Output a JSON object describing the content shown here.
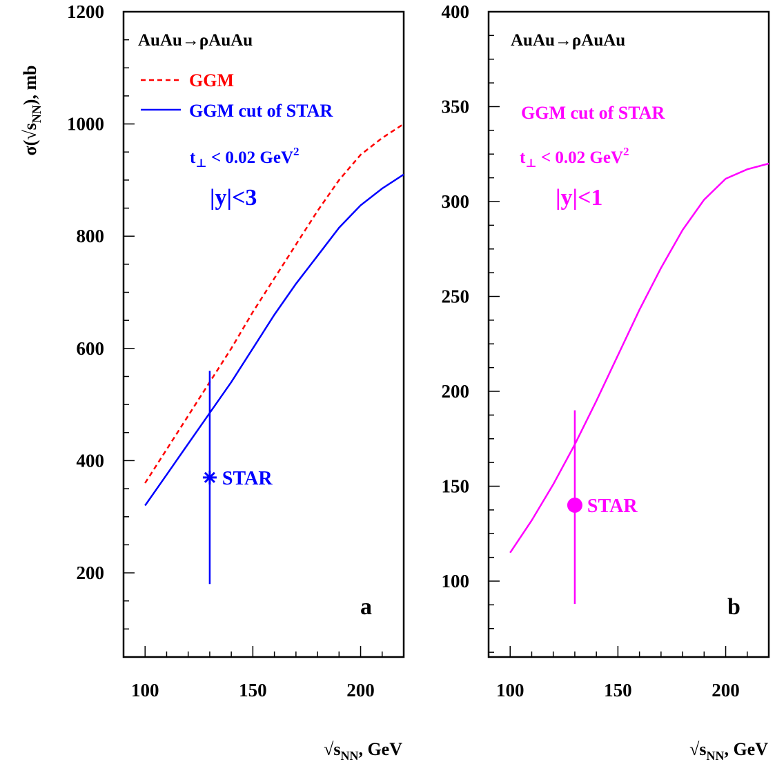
{
  "chart_data": [
    {
      "panel": "a",
      "type": "line",
      "process": "AuAu→ρAuAu",
      "ylabel_prefix": "σ(√s",
      "ylabel_sub": "NN",
      "ylabel_suffix": "), mb",
      "xlabel_prefix": "√s",
      "xlabel_sub": "NN",
      "xlabel_suffix": ", GeV",
      "xlim": [
        90,
        220
      ],
      "ylim": [
        50,
        1200
      ],
      "xticks": [
        100,
        150,
        200
      ],
      "yticks": [
        200,
        400,
        600,
        800,
        1000,
        1200
      ],
      "legend": [
        {
          "label": "GGM",
          "color": "#ff0000",
          "style": "dashed"
        },
        {
          "label": "GGM cut of STAR",
          "color": "#0000ff",
          "style": "solid"
        }
      ],
      "cut_prefix": "t",
      "cut_sub": "⊥",
      "cut_main": " < 0.02 GeV",
      "cut_sup": "2",
      "cut_color": "#0000ff",
      "rapidity": "|y|<3",
      "series": [
        {
          "name": "GGM",
          "color": "#ff0000",
          "style": "dashed",
          "x": [
            100,
            110,
            120,
            130,
            140,
            150,
            160,
            170,
            180,
            190,
            200,
            210,
            220
          ],
          "y": [
            360,
            420,
            480,
            540,
            600,
            665,
            725,
            785,
            845,
            900,
            945,
            975,
            1000
          ]
        },
        {
          "name": "GGM cut of STAR",
          "color": "#0000ff",
          "style": "solid",
          "x": [
            100,
            110,
            120,
            130,
            140,
            150,
            160,
            170,
            180,
            190,
            200,
            210,
            220
          ],
          "y": [
            320,
            375,
            430,
            485,
            540,
            600,
            660,
            715,
            765,
            815,
            855,
            885,
            910
          ]
        }
      ],
      "data_point": {
        "label": "STAR",
        "x": 130,
        "y": 370,
        "yerr_low": 180,
        "yerr_high": 560,
        "marker": "star",
        "color": "#0000ff"
      },
      "panel_label": "a"
    },
    {
      "panel": "b",
      "type": "line",
      "process": "AuAu→ρAuAu",
      "xlabel_prefix": "√s",
      "xlabel_sub": "NN",
      "xlabel_suffix": ", GeV",
      "xlim": [
        90,
        220
      ],
      "ylim": [
        60,
        400
      ],
      "xticks": [
        100,
        150,
        200
      ],
      "yticks": [
        100,
        150,
        200,
        250,
        300,
        350,
        400
      ],
      "legend": [
        {
          "label": "GGM cut of STAR",
          "color": "#ff00ff",
          "style": "solid"
        }
      ],
      "cut_prefix": "t",
      "cut_sub": "⊥",
      "cut_main": " < 0.02 GeV",
      "cut_sup": "2",
      "cut_color": "#ff00ff",
      "rapidity": "|y|<1",
      "series": [
        {
          "name": "GGM cut of STAR",
          "color": "#ff00ff",
          "style": "solid",
          "x": [
            100,
            110,
            120,
            130,
            140,
            150,
            160,
            170,
            180,
            190,
            200,
            210,
            220
          ],
          "y": [
            115,
            132,
            151,
            172,
            195,
            219,
            243,
            265,
            285,
            301,
            312,
            317,
            320
          ]
        }
      ],
      "data_point": {
        "label": "STAR",
        "x": 130,
        "y": 140,
        "yerr_low": 88,
        "yerr_high": 190,
        "marker": "circle",
        "color": "#ff00ff"
      },
      "panel_label": "b"
    }
  ]
}
